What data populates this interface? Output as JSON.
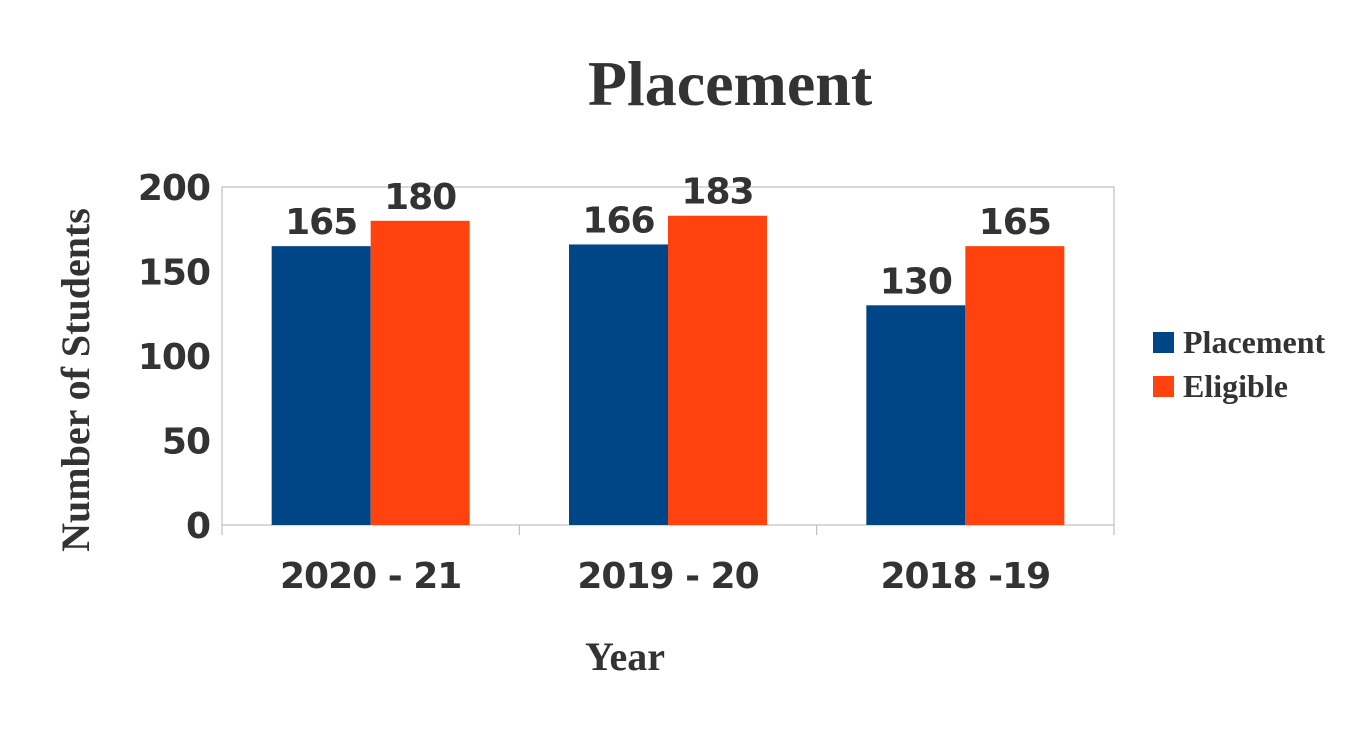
{
  "chart_data": {
    "type": "bar",
    "title": "Placement",
    "xlabel": "Year",
    "ylabel": "Number of Students",
    "categories": [
      "2020 - 21",
      "2019 - 20",
      "2018 -19"
    ],
    "series": [
      {
        "name": "Placement",
        "values": [
          165,
          166,
          130
        ],
        "color": "#004586"
      },
      {
        "name": "Eligible",
        "values": [
          180,
          183,
          165
        ],
        "color": "#ff420e"
      }
    ],
    "ylim": [
      0,
      200
    ],
    "yticks": [
      0,
      50,
      100,
      150,
      200
    ],
    "grid": false,
    "legend_position": "right",
    "data_labels": true
  }
}
